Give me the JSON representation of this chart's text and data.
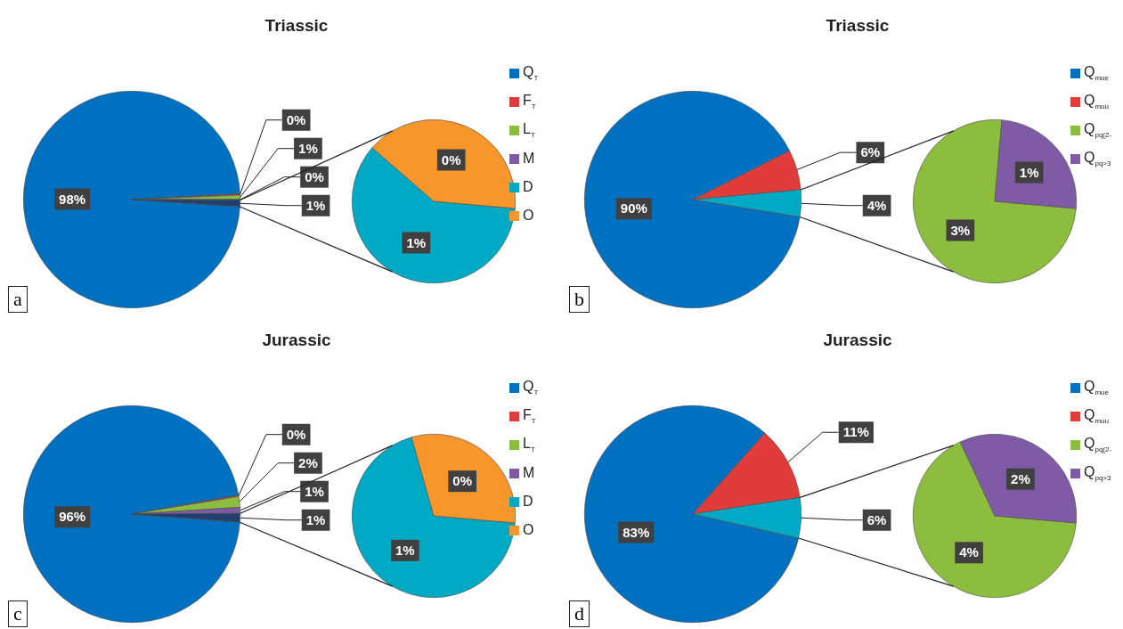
{
  "chart_data": [
    {
      "type": "pie",
      "title": "Triassic",
      "legend": "right",
      "annotations": [
        "a"
      ],
      "categories": [
        "Q$_{T}$",
        "F$_{T}$",
        "L$_{T}$",
        "M",
        null
      ],
      "values": [
        98.1,
        0.2,
        0.6,
        0.1,
        1.0
      ],
      "colors": [
        "#0070c0",
        "#e03c3c",
        "#8cbd3f",
        "#7f5ba6",
        "#1f3f6e"
      ],
      "value_labels": [
        "98%",
        "0%",
        "1%",
        "0%",
        "1%"
      ]
    },
    {
      "type": "pie",
      "legend": "right",
      "categories": [
        "D",
        "O"
      ],
      "values": [
        0.6,
        0.4
      ],
      "colors": [
        "#00a9c4",
        "#f7962b"
      ],
      "value_labels": [
        "1%",
        "0%"
      ]
    },
    {
      "type": "pie",
      "title": "Triassic",
      "legend": "right",
      "annotations": [
        "b"
      ],
      "categories": [
        "Q$_{mue}$",
        "Q$_{muu}$",
        null
      ],
      "values": [
        90,
        6,
        4
      ],
      "colors": [
        "#0070c0",
        "#e03c3c",
        "#00a9c4"
      ],
      "value_labels": [
        "90%",
        "6%",
        "4%"
      ]
    },
    {
      "type": "pie",
      "legend": "right",
      "categories": [
        "Q$_{pq(2-}$",
        "Q$_{pq>3}$"
      ],
      "values": [
        3,
        1
      ],
      "colors": [
        "#8cbd3f",
        "#7f5ba6"
      ],
      "value_labels": [
        "3%",
        "1%"
      ]
    },
    {
      "type": "pie",
      "title": "Jurassic",
      "legend": "right",
      "annotations": [
        "c"
      ],
      "categories": [
        "Q$_{T}$",
        "F$_{T}$",
        "L$_{T}$",
        "M",
        null
      ],
      "values": [
        96.0,
        0.2,
        1.6,
        0.9,
        1.3
      ],
      "colors": [
        "#0070c0",
        "#e03c3c",
        "#8cbd3f",
        "#7f5ba6",
        "#1f3f6e"
      ],
      "value_labels": [
        "96%",
        "0%",
        "2%",
        "1%",
        "1%"
      ]
    },
    {
      "type": "pie",
      "legend": "right",
      "categories": [
        "D",
        "O"
      ],
      "values": [
        0.9,
        0.4
      ],
      "colors": [
        "#00a9c4",
        "#f7962b"
      ],
      "value_labels": [
        "1%",
        "0%"
      ]
    },
    {
      "type": "pie",
      "title": "Jurassic",
      "legend": "right",
      "annotations": [
        "d"
      ],
      "categories": [
        "Q$_{mue}$",
        "Q$_{muu}$",
        null
      ],
      "values": [
        83,
        11,
        6
      ],
      "colors": [
        "#0070c0",
        "#e03c3c",
        "#00a9c4"
      ],
      "value_labels": [
        "83%",
        "11%",
        "6%"
      ]
    },
    {
      "type": "pie",
      "legend": "right",
      "categories": [
        "Q$_{pq(2-}$",
        "Q$_{pq>3}$"
      ],
      "values": [
        4,
        2
      ],
      "colors": [
        "#8cbd3f",
        "#7f5ba6"
      ],
      "value_labels": [
        "4%",
        "2%"
      ]
    }
  ]
}
